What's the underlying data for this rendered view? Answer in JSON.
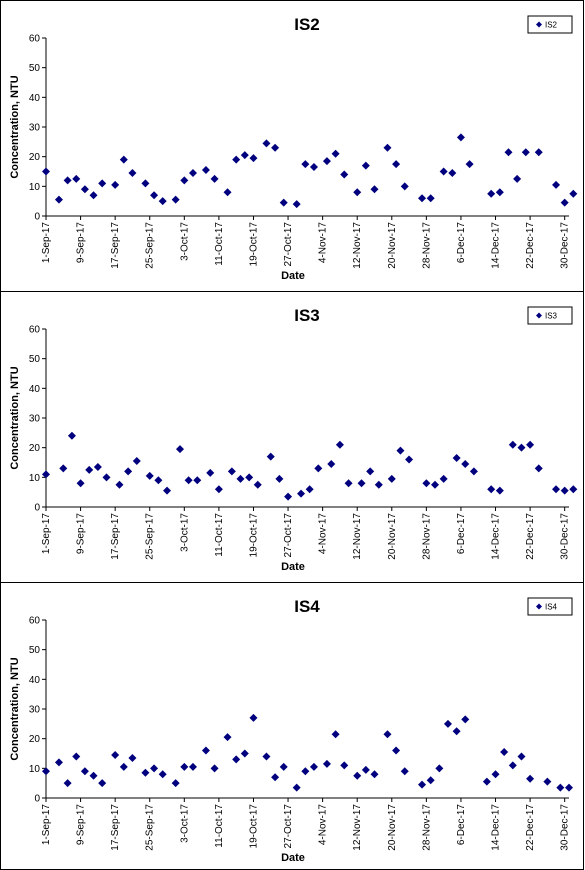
{
  "chart_data": [
    {
      "type": "scatter",
      "title": "IS2",
      "xlabel": "Date",
      "ylabel": "Concentration, NTU",
      "ylim": [
        0,
        60
      ],
      "yticks": [
        0,
        10,
        20,
        30,
        40,
        50,
        60
      ],
      "xlim": [
        "1-Sep-17",
        "31-Dec-17"
      ],
      "xticks": [
        "1-Sep-17",
        "9-Sep-17",
        "17-Sep-17",
        "25-Sep-17",
        "3-Oct-17",
        "11-Oct-17",
        "19-Oct-17",
        "27-Oct-17",
        "4-Nov-17",
        "12-Nov-17",
        "20-Nov-17",
        "28-Nov-17",
        "6-Dec-17",
        "14-Dec-17",
        "22-Dec-17",
        "30-Dec-17"
      ],
      "legend": {
        "position": "top-right",
        "entries": [
          "IS2"
        ]
      },
      "series": [
        {
          "name": "IS2",
          "color": "#00007f",
          "marker": "diamond",
          "points": [
            [
              "1-Sep-17",
              15
            ],
            [
              "4-Sep-17",
              5.5
            ],
            [
              "6-Sep-17",
              12
            ],
            [
              "8-Sep-17",
              12.5
            ],
            [
              "10-Sep-17",
              9
            ],
            [
              "12-Sep-17",
              7
            ],
            [
              "14-Sep-17",
              11
            ],
            [
              "17-Sep-17",
              10.5
            ],
            [
              "19-Sep-17",
              19
            ],
            [
              "21-Sep-17",
              14.5
            ],
            [
              "24-Sep-17",
              11
            ],
            [
              "26-Sep-17",
              7
            ],
            [
              "28-Sep-17",
              5
            ],
            [
              "1-Oct-17",
              5.5
            ],
            [
              "3-Oct-17",
              12
            ],
            [
              "5-Oct-17",
              14.5
            ],
            [
              "8-Oct-17",
              15.5
            ],
            [
              "10-Oct-17",
              12.5
            ],
            [
              "13-Oct-17",
              8
            ],
            [
              "15-Oct-17",
              19
            ],
            [
              "17-Oct-17",
              20.5
            ],
            [
              "19-Oct-17",
              19.5
            ],
            [
              "22-Oct-17",
              24.5
            ],
            [
              "24-Oct-17",
              23
            ],
            [
              "26-Oct-17",
              4.5
            ],
            [
              "29-Oct-17",
              4
            ],
            [
              "31-Oct-17",
              17.5
            ],
            [
              "2-Nov-17",
              16.5
            ],
            [
              "5-Nov-17",
              18.5
            ],
            [
              "7-Nov-17",
              21
            ],
            [
              "9-Nov-17",
              14
            ],
            [
              "12-Nov-17",
              8
            ],
            [
              "14-Nov-17",
              17
            ],
            [
              "16-Nov-17",
              9
            ],
            [
              "19-Nov-17",
              23
            ],
            [
              "21-Nov-17",
              17.5
            ],
            [
              "23-Nov-17",
              10
            ],
            [
              "27-Nov-17",
              6
            ],
            [
              "29-Nov-17",
              6
            ],
            [
              "2-Dec-17",
              15
            ],
            [
              "4-Dec-17",
              14.5
            ],
            [
              "6-Dec-17",
              26.5
            ],
            [
              "8-Dec-17",
              17.5
            ],
            [
              "13-Dec-17",
              7.5
            ],
            [
              "15-Dec-17",
              8
            ],
            [
              "17-Dec-17",
              21.5
            ],
            [
              "19-Dec-17",
              12.5
            ],
            [
              "21-Dec-17",
              21.5
            ],
            [
              "24-Dec-17",
              21.5
            ],
            [
              "28-Dec-17",
              10.5
            ],
            [
              "30-Dec-17",
              4.5
            ],
            [
              "1-Jan-18",
              7.5
            ]
          ]
        }
      ]
    },
    {
      "type": "scatter",
      "title": "IS3",
      "xlabel": "Date",
      "ylabel": "Concentration, NTU",
      "ylim": [
        0,
        60
      ],
      "yticks": [
        0,
        10,
        20,
        30,
        40,
        50,
        60
      ],
      "xlim": [
        "1-Sep-17",
        "31-Dec-17"
      ],
      "xticks": [
        "1-Sep-17",
        "9-Sep-17",
        "17-Sep-17",
        "25-Sep-17",
        "3-Oct-17",
        "11-Oct-17",
        "19-Oct-17",
        "27-Oct-17",
        "4-Nov-17",
        "12-Nov-17",
        "20-Nov-17",
        "28-Nov-17",
        "6-Dec-17",
        "14-Dec-17",
        "22-Dec-17",
        "30-Dec-17"
      ],
      "legend": {
        "position": "top-right",
        "entries": [
          "IS3"
        ]
      },
      "series": [
        {
          "name": "IS3",
          "color": "#00007f",
          "marker": "diamond",
          "points": [
            [
              "1-Sep-17",
              11
            ],
            [
              "5-Sep-17",
              13
            ],
            [
              "7-Sep-17",
              24
            ],
            [
              "9-Sep-17",
              8
            ],
            [
              "11-Sep-17",
              12.5
            ],
            [
              "13-Sep-17",
              13.5
            ],
            [
              "15-Sep-17",
              10
            ],
            [
              "18-Sep-17",
              7.5
            ],
            [
              "20-Sep-17",
              12
            ],
            [
              "22-Sep-17",
              15.5
            ],
            [
              "25-Sep-17",
              10.5
            ],
            [
              "27-Sep-17",
              9
            ],
            [
              "29-Sep-17",
              5.5
            ],
            [
              "2-Oct-17",
              19.5
            ],
            [
              "4-Oct-17",
              9
            ],
            [
              "6-Oct-17",
              9
            ],
            [
              "9-Oct-17",
              11.5
            ],
            [
              "11-Oct-17",
              6
            ],
            [
              "14-Oct-17",
              12
            ],
            [
              "16-Oct-17",
              9.5
            ],
            [
              "18-Oct-17",
              10
            ],
            [
              "20-Oct-17",
              7.5
            ],
            [
              "23-Oct-17",
              17
            ],
            [
              "25-Oct-17",
              9.5
            ],
            [
              "27-Oct-17",
              3.5
            ],
            [
              "30-Oct-17",
              4.5
            ],
            [
              "1-Nov-17",
              6
            ],
            [
              "3-Nov-17",
              13
            ],
            [
              "6-Nov-17",
              14.5
            ],
            [
              "8-Nov-17",
              21
            ],
            [
              "10-Nov-17",
              8
            ],
            [
              "13-Nov-17",
              8
            ],
            [
              "15-Nov-17",
              12
            ],
            [
              "17-Nov-17",
              7.5
            ],
            [
              "20-Nov-17",
              9.5
            ],
            [
              "22-Nov-17",
              19
            ],
            [
              "24-Nov-17",
              16
            ],
            [
              "28-Nov-17",
              8
            ],
            [
              "30-Nov-17",
              7.5
            ],
            [
              "2-Dec-17",
              9.5
            ],
            [
              "5-Dec-17",
              16.5
            ],
            [
              "7-Dec-17",
              14.5
            ],
            [
              "9-Dec-17",
              12
            ],
            [
              "13-Dec-17",
              6
            ],
            [
              "15-Dec-17",
              5.5
            ],
            [
              "18-Dec-17",
              21
            ],
            [
              "20-Dec-17",
              20
            ],
            [
              "22-Dec-17",
              21
            ],
            [
              "24-Dec-17",
              13
            ],
            [
              "28-Dec-17",
              6
            ],
            [
              "30-Dec-17",
              5.5
            ],
            [
              "1-Jan-18",
              6
            ]
          ]
        }
      ]
    },
    {
      "type": "scatter",
      "title": "IS4",
      "xlabel": "Date",
      "ylabel": "Concentration, NTU",
      "ylim": [
        0,
        60
      ],
      "yticks": [
        0,
        10,
        20,
        30,
        40,
        50,
        60
      ],
      "xlim": [
        "1-Sep-17",
        "31-Dec-17"
      ],
      "xticks": [
        "1-Sep-17",
        "9-Sep-17",
        "17-Sep-17",
        "25-Sep-17",
        "3-Oct-17",
        "11-Oct-17",
        "19-Oct-17",
        "27-Oct-17",
        "4-Nov-17",
        "12-Nov-17",
        "20-Nov-17",
        "28-Nov-17",
        "6-Dec-17",
        "14-Dec-17",
        "22-Dec-17",
        "30-Dec-17"
      ],
      "legend": {
        "position": "top-right",
        "entries": [
          "IS4"
        ]
      },
      "series": [
        {
          "name": "IS4",
          "color": "#00007f",
          "marker": "diamond",
          "points": [
            [
              "1-Sep-17",
              9
            ],
            [
              "4-Sep-17",
              12
            ],
            [
              "6-Sep-17",
              5
            ],
            [
              "8-Sep-17",
              14
            ],
            [
              "10-Sep-17",
              9
            ],
            [
              "12-Sep-17",
              7.5
            ],
            [
              "14-Sep-17",
              5
            ],
            [
              "17-Sep-17",
              14.5
            ],
            [
              "19-Sep-17",
              10.5
            ],
            [
              "21-Sep-17",
              13.5
            ],
            [
              "24-Sep-17",
              8.5
            ],
            [
              "26-Sep-17",
              10
            ],
            [
              "28-Sep-17",
              8
            ],
            [
              "1-Oct-17",
              5
            ],
            [
              "3-Oct-17",
              10.5
            ],
            [
              "5-Oct-17",
              10.5
            ],
            [
              "8-Oct-17",
              16
            ],
            [
              "10-Oct-17",
              10
            ],
            [
              "13-Oct-17",
              20.5
            ],
            [
              "15-Oct-17",
              13
            ],
            [
              "17-Oct-17",
              15
            ],
            [
              "19-Oct-17",
              27
            ],
            [
              "22-Oct-17",
              14
            ],
            [
              "24-Oct-17",
              7
            ],
            [
              "26-Oct-17",
              10.5
            ],
            [
              "29-Oct-17",
              3.5
            ],
            [
              "31-Oct-17",
              9
            ],
            [
              "2-Nov-17",
              10.5
            ],
            [
              "5-Nov-17",
              11.5
            ],
            [
              "7-Nov-17",
              21.5
            ],
            [
              "9-Nov-17",
              11
            ],
            [
              "12-Nov-17",
              7.5
            ],
            [
              "14-Nov-17",
              9.5
            ],
            [
              "16-Nov-17",
              8
            ],
            [
              "19-Nov-17",
              21.5
            ],
            [
              "21-Nov-17",
              16
            ],
            [
              "23-Nov-17",
              9
            ],
            [
              "27-Nov-17",
              4.5
            ],
            [
              "29-Nov-17",
              6
            ],
            [
              "1-Dec-17",
              10
            ],
            [
              "3-Dec-17",
              25
            ],
            [
              "5-Dec-17",
              22.5
            ],
            [
              "7-Dec-17",
              26.5
            ],
            [
              "12-Dec-17",
              5.5
            ],
            [
              "14-Dec-17",
              8
            ],
            [
              "16-Dec-17",
              15.5
            ],
            [
              "18-Dec-17",
              11
            ],
            [
              "20-Dec-17",
              14
            ],
            [
              "22-Dec-17",
              6.5
            ],
            [
              "26-Dec-17",
              5.5
            ],
            [
              "29-Dec-17",
              3.5
            ],
            [
              "31-Dec-17",
              3.5
            ]
          ]
        }
      ]
    }
  ]
}
